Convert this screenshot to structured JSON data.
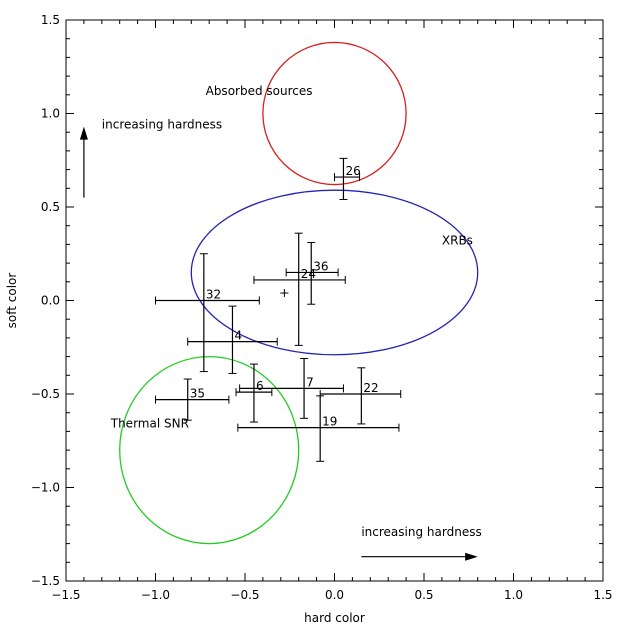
{
  "chart_data": {
    "type": "scatter",
    "xlabel": "hard color",
    "ylabel": "soft color",
    "xlim": [
      -1.5,
      1.5
    ],
    "ylim": [
      -1.5,
      1.5
    ],
    "grid": false,
    "x_ticks": [
      {
        "value": -1.5,
        "label": "−1.5"
      },
      {
        "value": -1.0,
        "label": "−1.0"
      },
      {
        "value": -0.5,
        "label": "−0.5"
      },
      {
        "value": 0.0,
        "label": "0.0"
      },
      {
        "value": 0.5,
        "label": "0.5"
      },
      {
        "value": 1.0,
        "label": "1.0"
      },
      {
        "value": 1.5,
        "label": "1.5"
      }
    ],
    "y_ticks": [
      {
        "value": -1.5,
        "label": "−1.5"
      },
      {
        "value": -1.0,
        "label": "−1.0"
      },
      {
        "value": -0.5,
        "label": "−0.5"
      },
      {
        "value": 0.0,
        "label": "0.0"
      },
      {
        "value": 0.5,
        "label": "0.5"
      },
      {
        "value": 1.0,
        "label": "1.0"
      },
      {
        "value": 1.5,
        "label": "1.5"
      }
    ],
    "regions": [
      {
        "name": "Absorbed sources",
        "cx": 0.0,
        "cy": 1.0,
        "rx": 0.4,
        "ry": 0.38,
        "color": "#d42020",
        "label_x": -0.72,
        "label_y": 1.1
      },
      {
        "name": "XRBs",
        "cx": 0.0,
        "cy": 0.15,
        "rx": 0.8,
        "ry": 0.44,
        "color": "#2424b0",
        "label_x": 0.6,
        "label_y": 0.3
      },
      {
        "name": "Thermal SNR",
        "cx": -0.7,
        "cy": -0.8,
        "rx": 0.5,
        "ry": 0.5,
        "color": "#22cc22",
        "label_x": -1.25,
        "label_y": -0.68
      }
    ],
    "points": [
      {
        "label": "26",
        "x": 0.05,
        "y": 0.66,
        "xerr": [
          0.05,
          0.09
        ],
        "yerr": [
          0.12,
          0.1
        ]
      },
      {
        "label": "36",
        "x": -0.13,
        "y": 0.15,
        "xerr": [
          0.14,
          0.15
        ],
        "yerr": [
          0.17,
          0.16
        ]
      },
      {
        "label": "24",
        "x": -0.2,
        "y": 0.11,
        "xerr": [
          0.25,
          0.26
        ],
        "yerr": [
          0.35,
          0.25
        ]
      },
      {
        "label": "",
        "x": -0.28,
        "y": 0.04,
        "xerr": [
          0,
          0
        ],
        "yerr": [
          0,
          0
        ]
      },
      {
        "label": "32",
        "x": -0.73,
        "y": 0.0,
        "xerr": [
          0.27,
          0.31
        ],
        "yerr": [
          0.38,
          0.25
        ]
      },
      {
        "label": "4",
        "x": -0.57,
        "y": -0.22,
        "xerr": [
          0.25,
          0.25
        ],
        "yerr": [
          0.17,
          0.19
        ]
      },
      {
        "label": "7",
        "x": -0.17,
        "y": -0.47,
        "xerr": [
          0.36,
          0.22
        ],
        "yerr": [
          0.16,
          0.16
        ]
      },
      {
        "label": "6",
        "x": -0.45,
        "y": -0.49,
        "xerr": [
          0.1,
          0.1
        ],
        "yerr": [
          0.16,
          0.15
        ]
      },
      {
        "label": "22",
        "x": 0.15,
        "y": -0.5,
        "xerr": [
          0.23,
          0.22
        ],
        "yerr": [
          0.16,
          0.14
        ]
      },
      {
        "label": "35",
        "x": -0.82,
        "y": -0.53,
        "xerr": [
          0.18,
          0.23
        ],
        "yerr": [
          0.11,
          0.11
        ]
      },
      {
        "label": "19",
        "x": -0.08,
        "y": -0.68,
        "xerr": [
          0.46,
          0.44
        ],
        "yerr": [
          0.18,
          0.17
        ]
      }
    ],
    "annotations": [
      {
        "text": "increasing hardness",
        "x": -1.3,
        "y": 0.9,
        "arrow": "up"
      },
      {
        "text": "increasing hardness",
        "x": 0.15,
        "y": -1.3,
        "arrow": "right"
      }
    ]
  }
}
